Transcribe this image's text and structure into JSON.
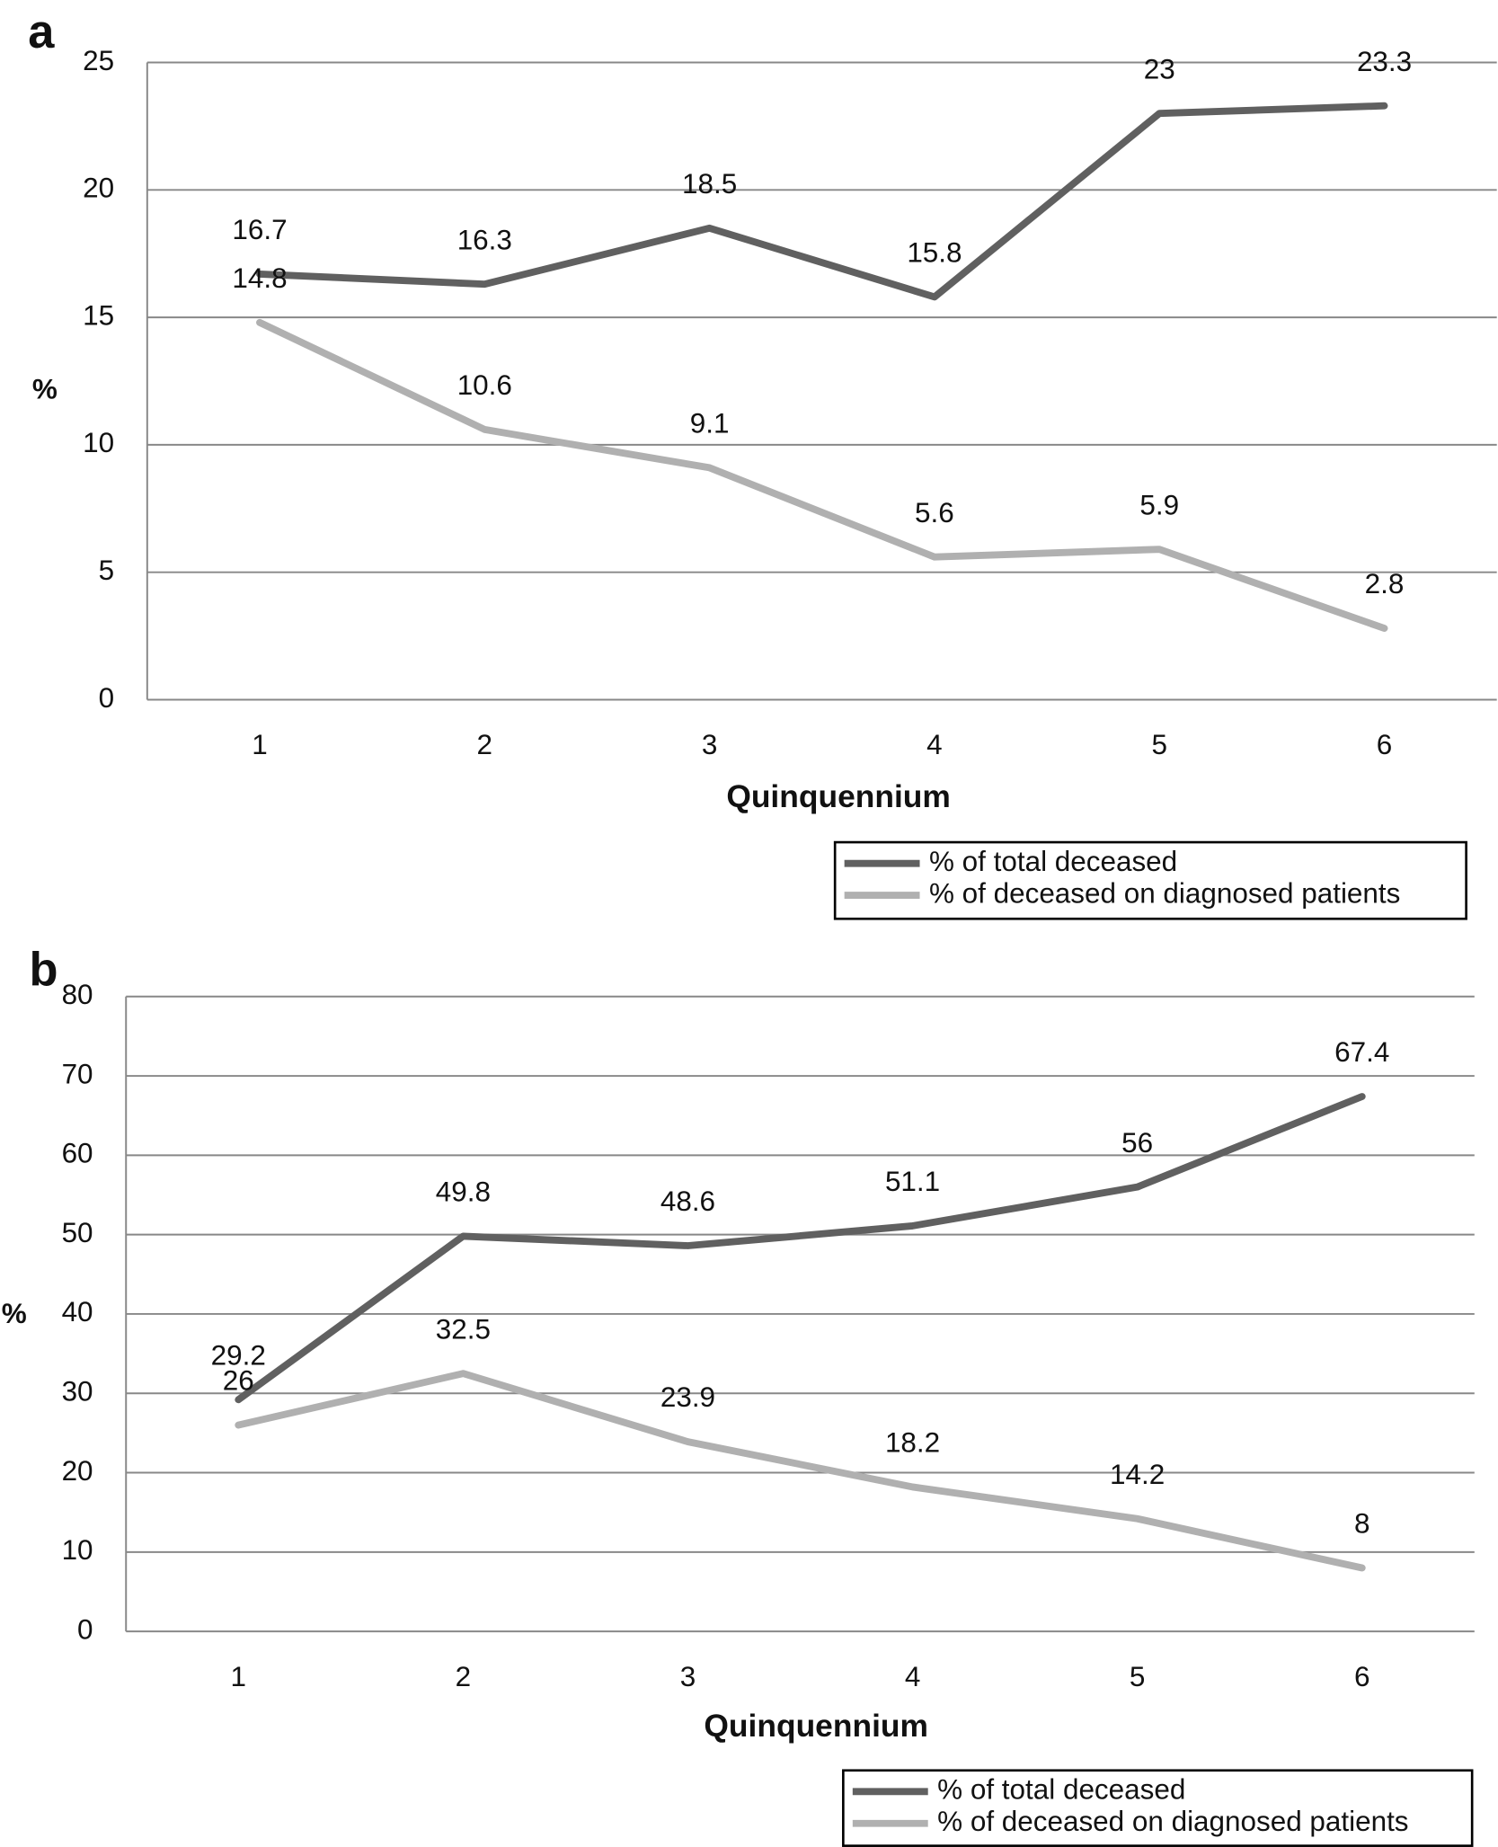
{
  "chart_data": [
    {
      "type": "line",
      "panel": "a",
      "ylabel": "%",
      "xlabel": "Quinquennium",
      "categories": [
        "1",
        "2",
        "3",
        "4",
        "5",
        "6"
      ],
      "series": [
        {
          "name": "% of total deceased",
          "color": "#606060",
          "values": [
            16.7,
            16.3,
            18.5,
            15.8,
            23,
            23.3
          ]
        },
        {
          "name": "% of deceased on diagnosed patients",
          "color": "#b0b0b0",
          "values": [
            14.8,
            10.6,
            9.1,
            5.6,
            5.9,
            2.8
          ]
        }
      ],
      "ylim": [
        0,
        25
      ],
      "yticks": [
        0,
        5,
        10,
        15,
        20,
        25
      ],
      "grid": true,
      "legend": "bottom-right"
    },
    {
      "type": "line",
      "panel": "b",
      "ylabel": "%",
      "xlabel": "Quinquennium",
      "categories": [
        "1",
        "2",
        "3",
        "4",
        "5",
        "6"
      ],
      "series": [
        {
          "name": "% of total deceased",
          "color": "#606060",
          "values": [
            29.2,
            49.8,
            48.6,
            51.1,
            56,
            67.4
          ]
        },
        {
          "name": "% of deceased on diagnosed patients",
          "color": "#b0b0b0",
          "values": [
            26,
            32.5,
            23.9,
            18.2,
            14.2,
            8
          ]
        }
      ],
      "ylim": [
        0,
        80
      ],
      "yticks": [
        0,
        10,
        20,
        30,
        40,
        50,
        60,
        70,
        80
      ],
      "grid": true,
      "legend": "bottom-right"
    }
  ]
}
